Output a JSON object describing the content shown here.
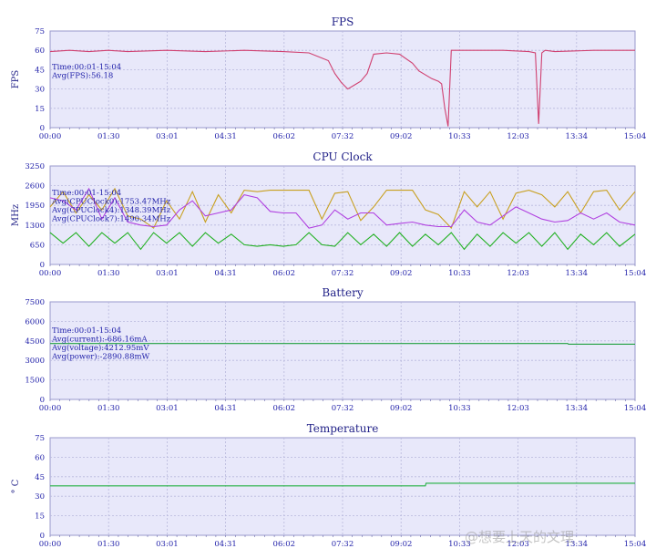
{
  "watermark": "@想要上天的文理",
  "colors": {
    "fps": "#d04070",
    "cpu_gold": "#c8a020",
    "cpu_purple": "#b040e0",
    "cpu_green": "#20b020",
    "battery": "#20a040",
    "temperature": "#20b040",
    "plot_bg": "#e8e8fa",
    "axis_text": "#2222aa"
  },
  "x_ticks": [
    "00:00",
    "01:30",
    "03:01",
    "04:31",
    "06:02",
    "07:32",
    "09:02",
    "10:33",
    "12:03",
    "13:34",
    "15:04"
  ],
  "chart_data": [
    {
      "type": "line",
      "title": "FPS",
      "ylabel": "FPS",
      "ylim": [
        0,
        75
      ],
      "y_ticks": [
        "0",
        "15",
        "30",
        "45",
        "60",
        "75"
      ],
      "xlim_minutes": [
        0,
        904
      ],
      "grid": true,
      "annotations": [
        "Time:00:01-15:04",
        "Avg(FPS):56.18"
      ],
      "series": [
        {
          "color_key": "fps",
          "x": [
            0,
            30,
            60,
            90,
            120,
            180,
            240,
            300,
            360,
            400,
            430,
            440,
            450,
            460,
            470,
            480,
            490,
            500,
            520,
            540,
            560,
            570,
            590,
            600,
            605,
            610,
            615,
            620,
            640,
            700,
            740,
            750,
            755,
            760,
            765,
            780,
            840,
            880,
            904
          ],
          "y": [
            59,
            60,
            59,
            60,
            59,
            60,
            59,
            60,
            59,
            58,
            52,
            42,
            35,
            30,
            33,
            36,
            42,
            57,
            58,
            57,
            50,
            44,
            38,
            36,
            34,
            15,
            1,
            60,
            60,
            60,
            59,
            58,
            3,
            58,
            60,
            59,
            60,
            60,
            60
          ]
        }
      ]
    },
    {
      "type": "line",
      "title": "CPU Clock",
      "ylabel": "MHz",
      "ylim": [
        0,
        3250
      ],
      "y_ticks": [
        "0",
        "650",
        "1300",
        "1950",
        "2600",
        "3250"
      ],
      "xlim_minutes": [
        0,
        904
      ],
      "grid": true,
      "annotations": [
        "Time:00:01-15:04",
        "Avg(CPUClock0):1753.47MHz",
        "Avg(CPUClock4):1348.39MHz",
        "Avg(CPUClock7):1490.34MHz"
      ],
      "series": [
        {
          "color_key": "cpu_gold",
          "x": [
            0,
            20,
            40,
            60,
            80,
            100,
            120,
            140,
            160,
            180,
            200,
            220,
            240,
            260,
            280,
            300,
            320,
            340,
            360,
            380,
            400,
            420,
            440,
            460,
            480,
            500,
            520,
            540,
            560,
            580,
            600,
            620,
            640,
            660,
            680,
            700,
            720,
            740,
            760,
            780,
            800,
            820,
            840,
            860,
            880,
            904
          ],
          "y": [
            1900,
            2400,
            1700,
            2300,
            1800,
            2500,
            1600,
            1500,
            1200,
            2100,
            1500,
            2400,
            1400,
            2300,
            1700,
            2450,
            2400,
            2450,
            2450,
            2450,
            2450,
            1500,
            2350,
            2400,
            1450,
            1900,
            2450,
            2450,
            2450,
            1800,
            1650,
            1200,
            2400,
            1900,
            2400,
            1500,
            2350,
            2450,
            2300,
            1900,
            2400,
            1700,
            2400,
            2450,
            1800,
            2400
          ]
        },
        {
          "color_key": "cpu_purple",
          "x": [
            0,
            20,
            40,
            60,
            80,
            100,
            120,
            140,
            160,
            180,
            200,
            220,
            240,
            260,
            280,
            300,
            320,
            340,
            360,
            380,
            400,
            420,
            440,
            460,
            480,
            500,
            520,
            540,
            560,
            580,
            600,
            620,
            640,
            660,
            680,
            700,
            720,
            740,
            760,
            780,
            800,
            820,
            840,
            860,
            880,
            904
          ],
          "y": [
            2200,
            2100,
            1800,
            2500,
            1500,
            2200,
            1400,
            1300,
            1250,
            1300,
            1800,
            2100,
            1600,
            1700,
            1800,
            2300,
            2200,
            1750,
            1700,
            1700,
            1200,
            1300,
            1800,
            1500,
            1700,
            1700,
            1300,
            1350,
            1400,
            1300,
            1250,
            1250,
            1800,
            1400,
            1300,
            1600,
            1900,
            1700,
            1500,
            1400,
            1450,
            1700,
            1500,
            1700,
            1400,
            1300
          ]
        },
        {
          "color_key": "cpu_green",
          "x": [
            0,
            20,
            40,
            60,
            80,
            100,
            120,
            140,
            160,
            180,
            200,
            220,
            240,
            260,
            280,
            300,
            320,
            340,
            360,
            380,
            400,
            420,
            440,
            460,
            480,
            500,
            520,
            540,
            560,
            580,
            600,
            620,
            640,
            660,
            680,
            700,
            720,
            740,
            760,
            780,
            800,
            820,
            840,
            860,
            880,
            904
          ],
          "y": [
            1050,
            700,
            1050,
            600,
            1050,
            700,
            1050,
            500,
            1050,
            700,
            1050,
            600,
            1050,
            700,
            1000,
            650,
            600,
            650,
            600,
            650,
            1050,
            650,
            600,
            1050,
            650,
            1000,
            600,
            1050,
            600,
            1000,
            650,
            1050,
            500,
            1000,
            600,
            1050,
            700,
            1050,
            600,
            1050,
            500,
            1000,
            650,
            1050,
            600,
            1000
          ]
        }
      ]
    },
    {
      "type": "line",
      "title": "Battery",
      "ylabel": "",
      "ylim": [
        0,
        7500
      ],
      "y_ticks": [
        "0",
        "1500",
        "3000",
        "4500",
        "6000",
        "7500"
      ],
      "xlim_minutes": [
        0,
        904
      ],
      "grid": true,
      "annotations": [
        "Time:00:01-15:04",
        "Avg(current):-686.16mA",
        "Avg(voltage):4212.95mV",
        "Avg(power):-2890.88mW"
      ],
      "series": [
        {
          "color_key": "battery",
          "x": [
            0,
            800,
            801,
            904
          ],
          "y": [
            4300,
            4300,
            4250,
            4250
          ]
        }
      ]
    },
    {
      "type": "line",
      "title": "Temperature",
      "ylabel": "° C",
      "ylim": [
        0,
        75
      ],
      "y_ticks": [
        "0",
        "15",
        "30",
        "45",
        "60",
        "75"
      ],
      "xlim_minutes": [
        0,
        904
      ],
      "grid": true,
      "annotations": [],
      "series": [
        {
          "color_key": "temperature",
          "x": [
            0,
            580,
            581,
            904
          ],
          "y": [
            38,
            38,
            40,
            40
          ]
        }
      ]
    }
  ]
}
